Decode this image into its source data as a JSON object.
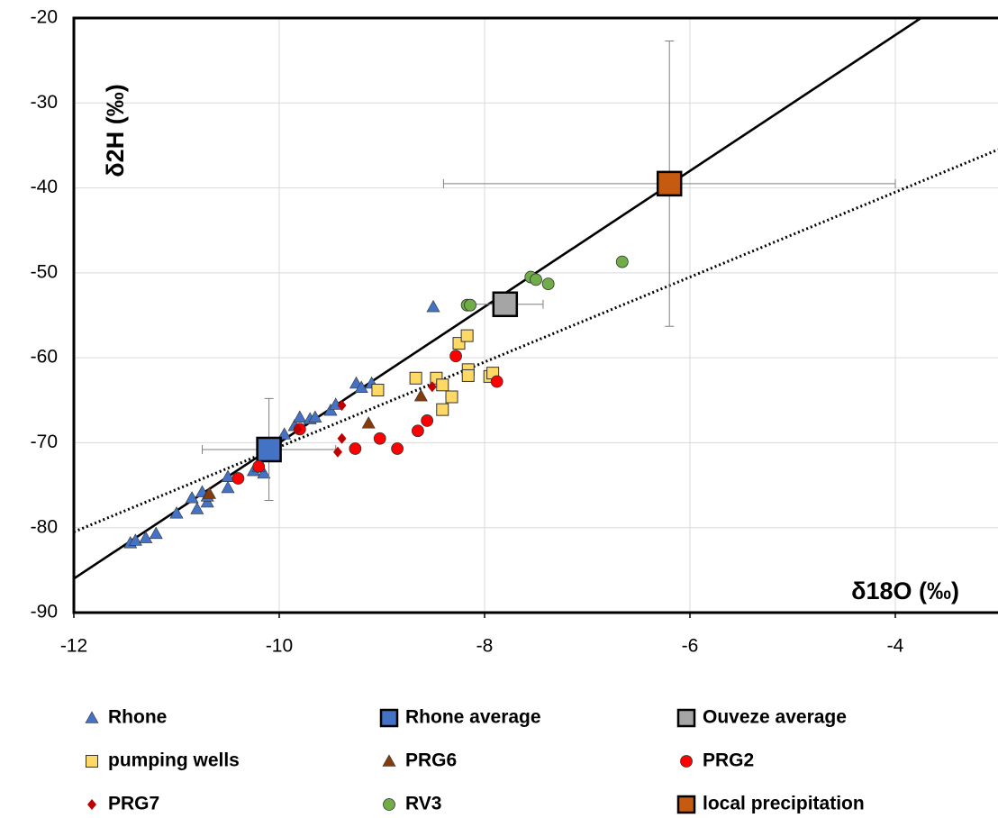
{
  "chart_data": {
    "type": "scatter",
    "x_label": "δ18O (‰)",
    "y_label": "δ2H (‰)",
    "xlim": [
      -12,
      -3
    ],
    "ylim": [
      -90,
      -20
    ],
    "xticks": [
      -12,
      -10,
      -8,
      -6,
      -4
    ],
    "yticks": [
      -90,
      -80,
      -70,
      -60,
      -50,
      -40,
      -30,
      -20
    ],
    "grid": true,
    "legend": "bottom",
    "reference_lines": [
      {
        "x": [
          -12,
          -3.75
        ],
        "values": [
          -86,
          -20
        ],
        "dash": "solid"
      },
      {
        "x": [
          -12,
          -3
        ],
        "values": [
          -80.5,
          -35.5
        ],
        "dash": "dotted"
      }
    ],
    "series": [
      {
        "name": "Rhone",
        "color": "#4472c4",
        "marker": "triangle",
        "x": [
          -11.45,
          -11.4,
          -11.3,
          -11.2,
          -11.0,
          -10.85,
          -10.8,
          -10.75,
          -10.7,
          -10.7,
          -10.5,
          -10.5,
          -10.25,
          -10.15,
          -10.2,
          -9.95,
          -9.85,
          -9.8,
          -9.7,
          -9.65,
          -9.5,
          -9.45,
          -9.25,
          -9.2,
          -9.1,
          -8.5
        ],
        "values": [
          -81.8,
          -81.5,
          -81.2,
          -80.7,
          -78.3,
          -76.5,
          -77.8,
          -75.8,
          -77,
          -76.3,
          -75.3,
          -74,
          -73.3,
          -73.6,
          -72.8,
          -69,
          -68,
          -67,
          -67.2,
          -67,
          -66.2,
          -65.5,
          -63,
          -63.5,
          -63,
          -54
        ]
      },
      {
        "name": "Rhone average",
        "color": "#4472c4",
        "marker": "large-square",
        "x": [
          -10.1
        ],
        "values": [
          -70.8
        ],
        "xerr": [
          0.65
        ],
        "yerr": [
          6
        ]
      },
      {
        "name": "Ouveze average",
        "color": "#a5a5a5",
        "marker": "large-square",
        "x": [
          -7.8
        ],
        "values": [
          -53.7
        ],
        "xerr": [
          0.37
        ],
        "yerr": [
          1
        ]
      },
      {
        "name": "pumping wells",
        "color": "#ffd966",
        "marker": "square",
        "x": [
          -9.04,
          -8.67,
          -8.47,
          -8.41,
          -8.41,
          -8.32,
          -8.16,
          -8.16,
          -8.25,
          -8.17,
          -7.95,
          -7.92
        ],
        "values": [
          -63.8,
          -62.4,
          -62.4,
          -63.2,
          -66.1,
          -64.6,
          -61.4,
          -62.1,
          -58.3,
          -57.4,
          -62.2,
          -61.8
        ]
      },
      {
        "name": "PRG6",
        "color": "#843c0c",
        "marker": "triangle",
        "x": [
          -10.68,
          -9.13,
          -8.62
        ],
        "values": [
          -76,
          -67.7,
          -64.5
        ]
      },
      {
        "name": "PRG2",
        "color": "#ff0000",
        "marker": "circle",
        "x": [
          -10.4,
          -10.2,
          -9.8,
          -9.26,
          -9.02,
          -8.85,
          -8.65,
          -8.56,
          -8.28,
          -7.88
        ],
        "values": [
          -74.2,
          -72.8,
          -68.4,
          -70.7,
          -69.5,
          -70.7,
          -68.6,
          -67.4,
          -59.8,
          -62.8
        ]
      },
      {
        "name": "PRG7",
        "color": "#c00000",
        "marker": "diamond",
        "x": [
          -9.82,
          -9.43,
          -9.39,
          -9.39,
          -8.51
        ],
        "values": [
          -68.4,
          -71.1,
          -69.5,
          -65.6,
          -63.4
        ]
      },
      {
        "name": "RV3",
        "color": "#70ad47",
        "marker": "circle",
        "x": [
          -8.17,
          -8.14,
          -7.55,
          -7.5,
          -7.38,
          -6.66
        ],
        "values": [
          -53.8,
          -53.8,
          -50.5,
          -50.8,
          -51.3,
          -48.7
        ]
      },
      {
        "name": "local precipitation",
        "color": "#c55a11",
        "marker": "large-square",
        "x": [
          -6.2
        ],
        "values": [
          -39.5
        ],
        "xerr": [
          2.2
        ],
        "yerr": [
          16.8
        ]
      }
    ]
  }
}
